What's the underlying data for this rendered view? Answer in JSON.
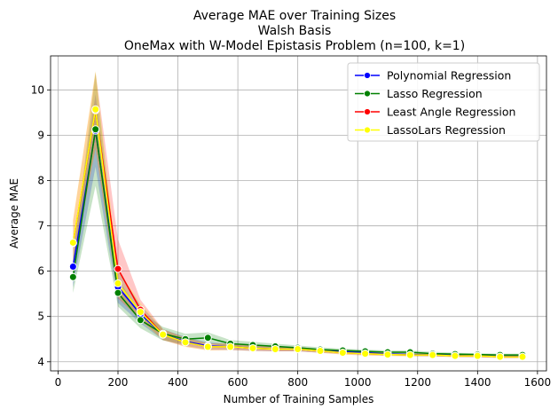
{
  "chart_data": {
    "type": "line",
    "title_lines": [
      "Average MAE over Training Sizes",
      "Walsh Basis",
      "OneMax with W-Model Epistasis Problem (n=100, k=1)"
    ],
    "xlabel": "Number of Training Samples",
    "ylabel": "Average MAE",
    "xlim": [
      -25,
      1630
    ],
    "ylim": [
      3.8,
      10.75
    ],
    "xticks": [
      0,
      200,
      400,
      600,
      800,
      1000,
      1200,
      1400,
      1600
    ],
    "yticks": [
      4,
      5,
      6,
      7,
      8,
      9,
      10
    ],
    "grid": true,
    "legend_position": "top-right",
    "series": [
      {
        "name": "Polynomial Regression",
        "color": "#0000ff",
        "x": [
          50,
          125,
          200,
          275,
          350,
          425,
          500,
          575,
          650,
          725,
          800,
          875,
          950,
          1025,
          1100,
          1175,
          1250,
          1325,
          1400,
          1475,
          1550
        ],
        "y": [
          6.1,
          9.1,
          5.65,
          5.05,
          4.6,
          4.45,
          4.35,
          4.33,
          4.3,
          4.28,
          4.28,
          4.24,
          4.22,
          4.2,
          4.17,
          4.16,
          4.15,
          4.14,
          4.13,
          4.12,
          4.12
        ],
        "band": [
          0.45,
          0.8,
          0.35,
          0.2,
          0.12,
          0.1,
          0.08,
          0.07,
          0.06,
          0.05,
          0.05,
          0.04,
          0.04,
          0.04,
          0.03,
          0.03,
          0.03,
          0.03,
          0.03,
          0.03,
          0.03
        ]
      },
      {
        "name": "Lasso Regression",
        "color": "#008000",
        "x": [
          50,
          125,
          200,
          275,
          350,
          425,
          500,
          575,
          650,
          725,
          800,
          875,
          950,
          1025,
          1100,
          1175,
          1250,
          1325,
          1400,
          1475,
          1550
        ],
        "y": [
          5.87,
          9.13,
          5.52,
          4.92,
          4.62,
          4.5,
          4.53,
          4.4,
          4.37,
          4.34,
          4.31,
          4.27,
          4.25,
          4.23,
          4.21,
          4.21,
          4.18,
          4.17,
          4.16,
          4.15,
          4.15
        ],
        "band": [
          0.35,
          1.25,
          0.3,
          0.18,
          0.15,
          0.12,
          0.12,
          0.08,
          0.07,
          0.06,
          0.05,
          0.05,
          0.04,
          0.04,
          0.04,
          0.04,
          0.04,
          0.03,
          0.03,
          0.03,
          0.03
        ]
      },
      {
        "name": "Least Angle Regression",
        "color": "#ff0000",
        "x": [
          50,
          125,
          200,
          275,
          350,
          425,
          500,
          575,
          650,
          725,
          800,
          875,
          950,
          1025,
          1100,
          1175,
          1250,
          1325,
          1400,
          1475,
          1550
        ],
        "y": [
          6.62,
          9.55,
          6.05,
          5.15,
          4.6,
          4.43,
          4.33,
          4.33,
          4.3,
          4.28,
          4.28,
          4.24,
          4.2,
          4.18,
          4.16,
          4.15,
          4.15,
          4.13,
          4.13,
          4.11,
          4.11
        ],
        "band": [
          0.5,
          0.85,
          0.65,
          0.22,
          0.12,
          0.1,
          0.08,
          0.07,
          0.06,
          0.05,
          0.05,
          0.04,
          0.04,
          0.04,
          0.03,
          0.03,
          0.03,
          0.03,
          0.03,
          0.03,
          0.03
        ]
      },
      {
        "name": "LassoLars Regression",
        "color": "#ffff00",
        "x": [
          50,
          125,
          200,
          275,
          350,
          425,
          500,
          575,
          650,
          725,
          800,
          875,
          950,
          1025,
          1100,
          1175,
          1250,
          1325,
          1400,
          1475,
          1550
        ],
        "y": [
          6.63,
          9.57,
          5.73,
          5.1,
          4.6,
          4.43,
          4.33,
          4.33,
          4.3,
          4.28,
          4.28,
          4.24,
          4.2,
          4.18,
          4.16,
          4.15,
          4.15,
          4.13,
          4.13,
          4.11,
          4.11
        ],
        "band": [
          0.5,
          0.85,
          0.3,
          0.2,
          0.12,
          0.1,
          0.08,
          0.07,
          0.06,
          0.05,
          0.05,
          0.04,
          0.04,
          0.04,
          0.03,
          0.03,
          0.03,
          0.03,
          0.03,
          0.03,
          0.03
        ]
      }
    ]
  }
}
